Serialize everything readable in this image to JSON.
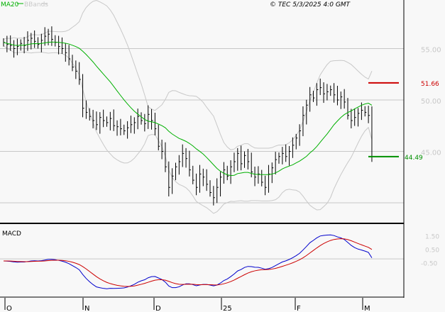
{
  "header": {
    "ma_label": "MA20",
    "bb_label": "BBands",
    "copyright": "© TEC 5/3/2025 4:0 GMT"
  },
  "colors": {
    "ma": "#00b000",
    "bbands": "#c8c8c8",
    "macd": "#0000cc",
    "signal": "#cc0000",
    "resistance": "#cc0000",
    "support": "#009000"
  },
  "chart_data": [
    {
      "type": "line",
      "panel": "price",
      "title": "",
      "series_labels": [
        "MA20",
        "BBands"
      ],
      "x_ticks": [
        "O",
        "N",
        "D",
        "25",
        "F",
        "M"
      ],
      "y_ticks": [
        "55.00",
        "50.00",
        "45.00"
      ],
      "ylim": [
        39.5,
        59.5
      ],
      "grid": true,
      "closes": [
        55.6,
        55.4,
        55.3,
        55.0,
        55.2,
        55.5,
        55.3,
        55.8,
        56.0,
        55.7,
        55.4,
        55.8,
        56.2,
        56.4,
        55.9,
        55.6,
        55.2,
        55.0,
        54.6,
        54.0,
        53.2,
        52.8,
        52.0,
        49.2,
        48.8,
        48.4,
        48.0,
        47.6,
        48.3,
        48.0,
        47.8,
        48.2,
        47.5,
        47.4,
        47.2,
        47.0,
        47.3,
        47.6,
        47.8,
        48.4,
        48.0,
        47.7,
        48.6,
        48.0,
        47.2,
        45.5,
        45.0,
        43.5,
        41.5,
        42.6,
        43.5,
        44.0,
        44.8,
        44.3,
        43.2,
        42.2,
        41.5,
        42.8,
        42.5,
        41.8,
        41.0,
        40.5,
        41.5,
        42.5,
        43.2,
        42.6,
        43.5,
        44.0,
        44.8,
        43.8,
        44.6,
        44.0,
        43.0,
        42.5,
        42.8,
        42.0,
        41.5,
        42.8,
        43.4,
        44.2,
        44.5,
        44.8,
        44.5,
        45.0,
        45.6,
        46.3,
        47.0,
        48.5,
        49.5,
        50.5,
        50.2,
        51.0,
        51.2,
        50.6,
        50.8,
        51.0,
        50.5,
        50.0,
        50.3,
        49.8,
        48.5,
        48.0,
        48.3,
        48.7,
        49.0,
        48.8,
        48.5,
        44.5
      ],
      "levels": [
        {
          "label": "51.66",
          "value": 51.66,
          "color": "#cc0000"
        },
        {
          "label": "44.49",
          "value": 44.49,
          "color": "#009000"
        }
      ]
    },
    {
      "type": "line",
      "panel": "macd",
      "title": "MACD",
      "y_ticks": [
        "1.50",
        "0.50",
        "-0.50"
      ],
      "ylim": [
        -3.5,
        2.5
      ]
    }
  ]
}
